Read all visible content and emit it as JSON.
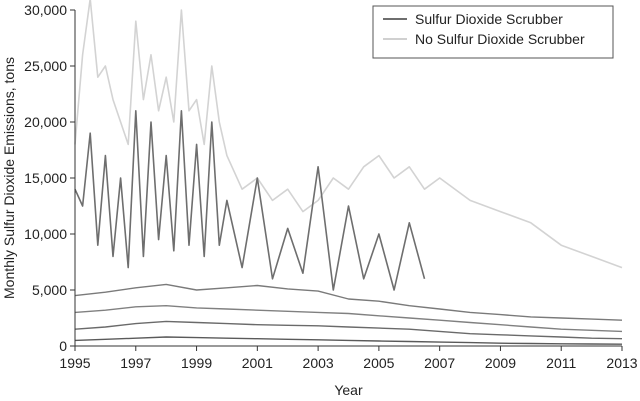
{
  "chart_data": {
    "type": "line",
    "title": "",
    "xlabel": "Year",
    "ylabel": "Monthly Sulfur Dioxide Emissions, tons",
    "xlim": [
      1995,
      2013
    ],
    "ylim": [
      0,
      30000
    ],
    "x_ticks": [
      1995,
      1997,
      1999,
      2001,
      2003,
      2005,
      2007,
      2009,
      2011,
      2013
    ],
    "y_ticks": [
      0,
      5000,
      10000,
      15000,
      20000,
      25000,
      30000
    ],
    "x_tick_labels": [
      "1995",
      "1997",
      "1999",
      "2001",
      "2003",
      "2005",
      "2007",
      "2009",
      "2011",
      "2013"
    ],
    "y_tick_labels": [
      "0",
      "5,000",
      "10,000",
      "15,000",
      "20,000",
      "25,000",
      "30,000"
    ],
    "grid": false,
    "legend": {
      "placement": "top-right",
      "entries": [
        {
          "label": "Sulfur Dioxide Scrubber",
          "color": "#6e6e6e"
        },
        {
          "label": "No Sulfur Dioxide Scrubber",
          "color": "#d0d0d0"
        }
      ]
    },
    "series": [
      {
        "name": "No Sulfur Dioxide Scrubber",
        "color": "#d3d3d3",
        "x": [
          1995.0,
          1995.25,
          1995.5,
          1995.75,
          1996.0,
          1996.25,
          1996.5,
          1996.75,
          1997.0,
          1997.25,
          1997.5,
          1997.75,
          1998.0,
          1998.25,
          1998.5,
          1998.75,
          1999.0,
          1999.25,
          1999.5,
          1999.75,
          2000.0,
          2000.5,
          2001.0,
          2001.5,
          2002.0,
          2002.5,
          2003.0,
          2003.5,
          2004.0,
          2004.5,
          2005.0,
          2005.5,
          2006.0,
          2006.5,
          2007.0,
          2008.0,
          2009.0,
          2010.0,
          2011.0,
          2012.0,
          2013.0
        ],
        "y": [
          18000,
          26000,
          31000,
          24000,
          25000,
          22000,
          20000,
          18000,
          29000,
          22000,
          26000,
          21000,
          24000,
          20000,
          30000,
          21000,
          22000,
          18000,
          25000,
          20000,
          17000,
          14000,
          15000,
          13000,
          14000,
          12000,
          13000,
          15000,
          14000,
          16000,
          17000,
          15000,
          16000,
          14000,
          15000,
          13000,
          12000,
          11000,
          9000,
          8000,
          7000
        ]
      },
      {
        "name": "Sulfur Dioxide Scrubber",
        "color": "#6e6e6e",
        "x": [
          1995.0,
          1995.25,
          1995.5,
          1995.75,
          1996.0,
          1996.25,
          1996.5,
          1996.75,
          1997.0,
          1997.25,
          1997.5,
          1997.75,
          1998.0,
          1998.25,
          1998.5,
          1998.75,
          1999.0,
          1999.25,
          1999.5,
          1999.75,
          2000.0,
          2000.5,
          2001.0,
          2001.5,
          2002.0,
          2002.5,
          2003.0,
          2003.5,
          2004.0,
          2004.5,
          2005.0,
          2005.5,
          2006.0,
          2006.5
        ],
        "y": [
          14000,
          12500,
          19000,
          9000,
          17000,
          8000,
          15000,
          7000,
          21000,
          8000,
          20000,
          9500,
          17000,
          8500,
          21000,
          9000,
          18000,
          8000,
          20000,
          9000,
          13000,
          7000,
          15000,
          6000,
          10500,
          6500,
          16000,
          5000,
          12500,
          6000,
          10000,
          5000,
          11000,
          6000
        ]
      },
      {
        "name": "",
        "color": "#7a7a7a",
        "x": [
          1995.0,
          1996.0,
          1997.0,
          1998.0,
          1999.0,
          2000.0,
          2001.0,
          2002.0,
          2003.0,
          2004.0,
          2005.0,
          2006.0,
          2007.0,
          2008.0,
          2009.0,
          2010.0,
          2011.0,
          2012.0,
          2013.0
        ],
        "y": [
          4500,
          4800,
          5200,
          5500,
          5000,
          5200,
          5400,
          5100,
          4900,
          4200,
          4000,
          3600,
          3300,
          3000,
          2800,
          2600,
          2500,
          2400,
          2300
        ]
      },
      {
        "name": "",
        "color": "#808080",
        "x": [
          1995.0,
          1996.0,
          1997.0,
          1998.0,
          1999.0,
          2000.0,
          2001.0,
          2002.0,
          2003.0,
          2004.0,
          2005.0,
          2006.0,
          2007.0,
          2008.0,
          2009.0,
          2010.0,
          2011.0,
          2012.0,
          2013.0
        ],
        "y": [
          3000,
          3200,
          3500,
          3600,
          3400,
          3300,
          3200,
          3100,
          3000,
          2900,
          2700,
          2500,
          2300,
          2100,
          1900,
          1700,
          1500,
          1400,
          1300
        ]
      },
      {
        "name": "",
        "color": "#6a6a6a",
        "x": [
          1995.0,
          1996.0,
          1997.0,
          1998.0,
          1999.0,
          2000.0,
          2001.0,
          2002.0,
          2003.0,
          2004.0,
          2005.0,
          2006.0,
          2007.0,
          2008.0,
          2009.0,
          2010.0,
          2011.0,
          2012.0,
          2013.0
        ],
        "y": [
          1500,
          1700,
          2000,
          2200,
          2100,
          2000,
          1900,
          1850,
          1800,
          1700,
          1600,
          1500,
          1300,
          1100,
          1000,
          900,
          800,
          700,
          650
        ]
      },
      {
        "name": "",
        "color": "#5a5a5a",
        "x": [
          1995.0,
          1996.0,
          1997.0,
          1998.0,
          1999.0,
          2000.0,
          2001.0,
          2002.0,
          2003.0,
          2004.0,
          2005.0,
          2006.0,
          2007.0,
          2008.0,
          2009.0,
          2010.0,
          2011.0,
          2012.0,
          2013.0
        ],
        "y": [
          500,
          600,
          700,
          800,
          750,
          700,
          650,
          600,
          550,
          500,
          450,
          400,
          350,
          300,
          250,
          220,
          200,
          180,
          160
        ]
      }
    ]
  }
}
